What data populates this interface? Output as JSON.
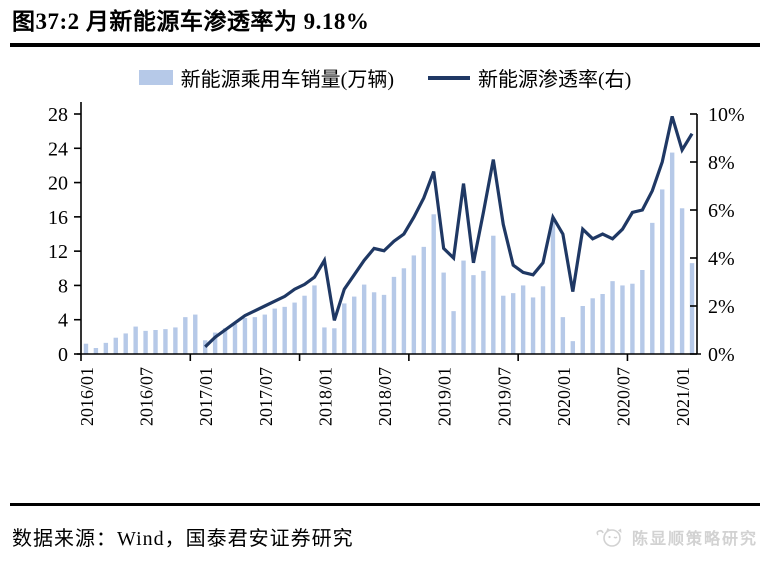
{
  "header": {
    "title": "图37:2 月新能源车渗透率为 9.18%"
  },
  "chart_data": {
    "type": "combo_bar_line",
    "title": "图37:2 月新能源车渗透率为 9.18%",
    "grid": false,
    "legend_position": "top",
    "categories": [
      "2016/01",
      "2016/02",
      "2016/03",
      "2016/04",
      "2016/05",
      "2016/06",
      "2016/07",
      "2016/08",
      "2016/09",
      "2016/10",
      "2016/11",
      "2016/12",
      "2017/01",
      "2017/02",
      "2017/03",
      "2017/04",
      "2017/05",
      "2017/06",
      "2017/07",
      "2017/08",
      "2017/09",
      "2017/10",
      "2017/11",
      "2017/12",
      "2018/01",
      "2018/02",
      "2018/03",
      "2018/04",
      "2018/05",
      "2018/06",
      "2018/07",
      "2018/08",
      "2018/09",
      "2018/10",
      "2018/11",
      "2018/12",
      "2019/01",
      "2019/02",
      "2019/03",
      "2019/04",
      "2019/05",
      "2019/06",
      "2019/07",
      "2019/08",
      "2019/09",
      "2019/10",
      "2019/11",
      "2019/12",
      "2020/01",
      "2020/02",
      "2020/03",
      "2020/04",
      "2020/05",
      "2020/06",
      "2020/07",
      "2020/08",
      "2020/09",
      "2020/10",
      "2020/11",
      "2020/12",
      "2021/01",
      "2021/02"
    ],
    "series": [
      {
        "name": "新能源乘用车销量(万辆)",
        "type": "bar",
        "axis": "left",
        "color": "#b6c9e8",
        "values": [
          1.2,
          0.7,
          1.3,
          1.9,
          2.4,
          3.2,
          2.7,
          2.8,
          2.9,
          3.1,
          4.3,
          4.6,
          1.6,
          2.5,
          3.0,
          3.5,
          4.2,
          4.3,
          4.6,
          5.3,
          5.5,
          6.0,
          6.8,
          8.0,
          3.1,
          3.0,
          5.9,
          6.7,
          8.1,
          7.2,
          6.9,
          9.0,
          10.0,
          11.5,
          12.5,
          16.3,
          9.5,
          5.0,
          10.9,
          9.2,
          9.7,
          13.8,
          6.8,
          7.1,
          8.0,
          6.6,
          7.9,
          15.9,
          4.3,
          1.5,
          5.6,
          6.5,
          7.0,
          8.5,
          8.0,
          8.2,
          9.8,
          15.3,
          19.2,
          23.5,
          17.0,
          10.6
        ]
      },
      {
        "name": "新能源渗透率(右)",
        "type": "line",
        "axis": "right",
        "color": "#1f3864",
        "values": [
          null,
          null,
          null,
          null,
          null,
          null,
          null,
          null,
          null,
          null,
          null,
          null,
          0.3,
          0.7,
          1.0,
          1.3,
          1.6,
          1.8,
          2.0,
          2.2,
          2.4,
          2.7,
          2.9,
          3.2,
          3.9,
          1.4,
          2.7,
          3.3,
          3.9,
          4.4,
          4.3,
          4.7,
          5.0,
          5.7,
          6.5,
          7.6,
          4.4,
          4.0,
          7.1,
          3.8,
          5.9,
          8.1,
          5.4,
          3.7,
          3.4,
          3.3,
          3.8,
          5.7,
          5.0,
          2.6,
          5.2,
          4.8,
          5.0,
          4.8,
          5.2,
          5.9,
          6.0,
          6.8,
          8.0,
          9.9,
          8.5,
          9.18
        ]
      }
    ],
    "x_axis": {
      "labels": [
        "2016/01",
        "2016/07",
        "2017/01",
        "2017/07",
        "2018/01",
        "2018/07",
        "2019/01",
        "2019/07",
        "2020/01",
        "2020/07",
        "2021/01"
      ],
      "label_every_n_months": 6,
      "tick_positions_months": [
        0,
        11,
        22,
        33,
        44,
        55
      ],
      "label_rotation_deg": -90
    },
    "y_left": {
      "min": 0,
      "max": 28,
      "step": 4,
      "tick_labels": [
        "0",
        "4",
        "8",
        "12",
        "16",
        "20",
        "24",
        "28"
      ]
    },
    "y_right": {
      "min": 0,
      "max": 10,
      "step": 2,
      "tick_labels": [
        "0%",
        "2%",
        "4%",
        "6%",
        "8%",
        "10%"
      ]
    },
    "axis_color": "#000000"
  },
  "footer": {
    "source_text": "数据来源：Wind，国泰君安证券研究",
    "watermark_text": "陈显顺策略研究"
  }
}
